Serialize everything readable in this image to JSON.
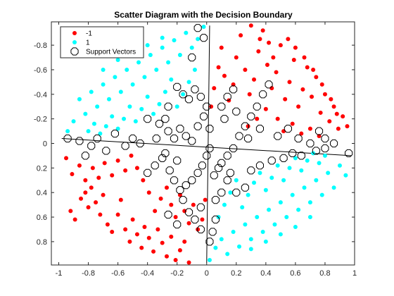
{
  "chart_data": {
    "type": "scatter",
    "title": "Scatter Diagram with the Decision Boundary",
    "xlabel": "",
    "ylabel": "",
    "xlim": [
      -1.05,
      1.0
    ],
    "ylim": [
      -0.99,
      0.99
    ],
    "y_reversed": true,
    "xticks": [
      -1,
      -0.8,
      -0.6,
      -0.4,
      -0.2,
      0,
      0.2,
      0.4,
      0.6,
      0.8,
      1
    ],
    "xtick_labels": [
      "-1",
      "-0.8",
      "-0.6",
      "-0.4",
      "-0.2",
      "0",
      "0.2",
      "0.4",
      "0.6",
      "0.8",
      "1"
    ],
    "yticks": [
      0.8,
      0.6,
      0.4,
      0.2,
      0,
      -0.2,
      -0.4,
      -0.6,
      -0.8
    ],
    "ytick_labels": [
      "0.8",
      "0.6",
      "0.4",
      "0.2",
      "0",
      "-0.2",
      "-0.4",
      "-0.6",
      "-0.8"
    ],
    "grid": false,
    "legend_position": "top-left",
    "legend": [
      "-1",
      "1",
      "Support Vectors"
    ],
    "colors": {
      "class_neg": "#ff0000",
      "class_pos": "#00ffff",
      "sv_ring": "#000000",
      "boundary": "#000000"
    },
    "series": [
      {
        "name": "-1",
        "color": "#ff0000",
        "points": [
          [
            -0.92,
            0.55
          ],
          [
            -0.89,
            0.62
          ],
          [
            -0.85,
            0.45
          ],
          [
            -0.82,
            0.4
          ],
          [
            -0.8,
            0.52
          ],
          [
            -0.78,
            0.36
          ],
          [
            -0.75,
            0.48
          ],
          [
            -0.72,
            0.58
          ],
          [
            -0.7,
            0.42
          ],
          [
            -0.67,
            0.66
          ],
          [
            -0.64,
            0.72
          ],
          [
            -0.6,
            0.58
          ],
          [
            -0.58,
            0.46
          ],
          [
            -0.55,
            0.7
          ],
          [
            -0.52,
            0.8
          ],
          [
            -0.5,
            0.62
          ],
          [
            -0.47,
            0.74
          ],
          [
            -0.44,
            0.85
          ],
          [
            -0.42,
            0.68
          ],
          [
            -0.39,
            0.77
          ],
          [
            -0.36,
            0.88
          ],
          [
            -0.33,
            0.7
          ],
          [
            -0.3,
            0.81
          ],
          [
            -0.27,
            0.92
          ],
          [
            -0.24,
            0.76
          ],
          [
            -0.21,
            0.95
          ],
          [
            -0.18,
            0.87
          ],
          [
            -0.15,
            0.8
          ],
          [
            -0.12,
            0.97
          ],
          [
            -0.95,
            0.12
          ],
          [
            -0.91,
            0.25
          ],
          [
            -0.86,
            0.18
          ],
          [
            -0.82,
            0.3
          ],
          [
            -0.77,
            0.2
          ],
          [
            -0.73,
            0.28
          ],
          [
            -0.69,
            0.16
          ],
          [
            -0.64,
            0.26
          ],
          [
            -0.6,
            0.14
          ],
          [
            -0.55,
            0.22
          ],
          [
            -0.51,
            0.1
          ],
          [
            -0.47,
            0.2
          ],
          [
            -0.43,
            0.3
          ],
          [
            -0.39,
            0.4
          ],
          [
            -0.35,
            0.55
          ],
          [
            -0.31,
            0.45
          ],
          [
            -0.27,
            0.36
          ],
          [
            -0.24,
            0.5
          ],
          [
            -0.21,
            0.6
          ],
          [
            -0.18,
            0.42
          ],
          [
            -0.15,
            0.55
          ],
          [
            -0.12,
            0.65
          ],
          [
            -0.09,
            0.5
          ],
          [
            -0.06,
            0.7
          ],
          [
            -0.03,
            0.62
          ],
          [
            -0.01,
            0.46
          ],
          [
            0.03,
            -0.3
          ],
          [
            0.05,
            -0.45
          ],
          [
            0.08,
            -0.62
          ],
          [
            0.1,
            -0.78
          ],
          [
            0.12,
            -0.55
          ],
          [
            0.15,
            -0.35
          ],
          [
            0.18,
            -0.48
          ],
          [
            0.2,
            -0.7
          ],
          [
            0.23,
            -0.88
          ],
          [
            0.26,
            -0.6
          ],
          [
            0.29,
            -0.4
          ],
          [
            0.32,
            -0.52
          ],
          [
            0.35,
            -0.75
          ],
          [
            0.38,
            -0.92
          ],
          [
            0.41,
            -0.64
          ],
          [
            0.44,
            -0.45
          ],
          [
            0.47,
            -0.58
          ],
          [
            0.5,
            -0.8
          ],
          [
            0.53,
            -0.36
          ],
          [
            0.56,
            -0.5
          ],
          [
            0.59,
            -0.68
          ],
          [
            0.62,
            -0.3
          ],
          [
            0.65,
            -0.44
          ],
          [
            0.68,
            -0.62
          ],
          [
            0.71,
            -0.38
          ],
          [
            0.74,
            -0.54
          ],
          [
            0.77,
            -0.25
          ],
          [
            0.8,
            -0.4
          ],
          [
            0.83,
            -0.18
          ],
          [
            0.86,
            -0.3
          ],
          [
            0.89,
            -0.12
          ],
          [
            0.92,
            -0.22
          ],
          [
            0.95,
            -0.14
          ],
          [
            0.48,
            -0.2
          ],
          [
            0.52,
            -0.1
          ],
          [
            0.58,
            -0.16
          ],
          [
            0.64,
            -0.08
          ],
          [
            0.7,
            -0.12
          ],
          [
            0.76,
            -0.06
          ],
          [
            0.4,
            -0.28
          ],
          [
            0.34,
            -0.2
          ],
          [
            0.28,
            -0.14
          ],
          [
            0.45,
            -0.7
          ],
          [
            0.55,
            -0.85
          ],
          [
            0.6,
            -0.78
          ],
          [
            0.66,
            -0.7
          ],
          [
            0.72,
            -0.6
          ],
          [
            0.78,
            -0.48
          ],
          [
            0.84,
            -0.36
          ],
          [
            0.88,
            -0.24
          ],
          [
            0.36,
            -0.85
          ],
          [
            0.3,
            -0.96
          ],
          [
            0.42,
            -0.82
          ]
        ]
      },
      {
        "name": "1",
        "color": "#00ffff",
        "points": [
          [
            0.02,
            0.95
          ],
          [
            0.06,
            0.85
          ],
          [
            0.1,
            0.78
          ],
          [
            0.14,
            0.9
          ],
          [
            0.18,
            0.72
          ],
          [
            0.22,
            0.84
          ],
          [
            0.26,
            0.66
          ],
          [
            0.3,
            0.78
          ],
          [
            0.34,
            0.6
          ],
          [
            0.38,
            0.72
          ],
          [
            0.42,
            0.54
          ],
          [
            0.46,
            0.66
          ],
          [
            0.5,
            0.48
          ],
          [
            0.54,
            0.6
          ],
          [
            0.58,
            0.42
          ],
          [
            0.62,
            0.54
          ],
          [
            0.66,
            0.36
          ],
          [
            0.7,
            0.48
          ],
          [
            0.74,
            0.3
          ],
          [
            0.78,
            0.42
          ],
          [
            0.82,
            0.24
          ],
          [
            0.86,
            0.36
          ],
          [
            0.9,
            0.18
          ],
          [
            0.94,
            0.26
          ],
          [
            0.08,
            0.6
          ],
          [
            0.12,
            0.5
          ],
          [
            0.16,
            0.4
          ],
          [
            0.2,
            0.3
          ],
          [
            0.24,
            0.52
          ],
          [
            0.28,
            0.42
          ],
          [
            0.32,
            0.32
          ],
          [
            0.36,
            0.24
          ],
          [
            0.4,
            0.38
          ],
          [
            0.44,
            0.28
          ],
          [
            0.48,
            0.18
          ],
          [
            0.52,
            0.3
          ],
          [
            0.56,
            0.2
          ],
          [
            0.6,
            0.12
          ],
          [
            0.64,
            0.22
          ],
          [
            0.68,
            0.14
          ],
          [
            0.72,
            0.08
          ],
          [
            0.76,
            0.16
          ],
          [
            0.8,
            0.1
          ],
          [
            0.3,
            0.86
          ],
          [
            0.4,
            0.8
          ],
          [
            0.5,
            0.74
          ],
          [
            0.6,
            0.68
          ],
          [
            0.7,
            0.6
          ],
          [
            -0.02,
            -0.95
          ],
          [
            -0.06,
            -0.85
          ],
          [
            -0.1,
            -0.78
          ],
          [
            -0.14,
            -0.9
          ],
          [
            -0.18,
            -0.72
          ],
          [
            -0.22,
            -0.84
          ],
          [
            -0.26,
            -0.66
          ],
          [
            -0.3,
            -0.78
          ],
          [
            -0.34,
            -0.6
          ],
          [
            -0.38,
            -0.72
          ],
          [
            -0.42,
            -0.54
          ],
          [
            -0.46,
            -0.66
          ],
          [
            -0.5,
            -0.48
          ],
          [
            -0.54,
            -0.6
          ],
          [
            -0.58,
            -0.42
          ],
          [
            -0.62,
            -0.54
          ],
          [
            -0.66,
            -0.36
          ],
          [
            -0.7,
            -0.48
          ],
          [
            -0.74,
            -0.3
          ],
          [
            -0.78,
            -0.42
          ],
          [
            -0.82,
            -0.24
          ],
          [
            -0.86,
            -0.36
          ],
          [
            -0.9,
            -0.18
          ],
          [
            -0.94,
            -0.1
          ],
          [
            -0.08,
            -0.6
          ],
          [
            -0.12,
            -0.5
          ],
          [
            -0.16,
            -0.4
          ],
          [
            -0.2,
            -0.3
          ],
          [
            -0.24,
            -0.52
          ],
          [
            -0.28,
            -0.42
          ],
          [
            -0.32,
            -0.32
          ],
          [
            -0.36,
            -0.24
          ],
          [
            -0.4,
            -0.38
          ],
          [
            -0.44,
            -0.28
          ],
          [
            -0.48,
            -0.18
          ],
          [
            -0.52,
            -0.3
          ],
          [
            -0.56,
            -0.2
          ],
          [
            -0.6,
            -0.12
          ],
          [
            -0.64,
            -0.22
          ],
          [
            -0.68,
            -0.14
          ],
          [
            -0.72,
            -0.08
          ],
          [
            -0.76,
            -0.16
          ],
          [
            -0.8,
            -0.1
          ],
          [
            -0.3,
            -0.86
          ],
          [
            -0.4,
            -0.8
          ],
          [
            -0.5,
            -0.74
          ],
          [
            -0.6,
            -0.68
          ],
          [
            -0.7,
            -0.6
          ],
          [
            -0.55,
            -0.88
          ],
          [
            -0.65,
            -0.8
          ],
          [
            -0.45,
            -0.92
          ]
        ]
      }
    ],
    "support_vectors": [
      [
        -0.82,
        0.1
      ],
      [
        -0.78,
        0.02
      ],
      [
        -0.68,
        0.06
      ],
      [
        -0.55,
        0.02
      ],
      [
        -0.45,
        0.0
      ],
      [
        -0.4,
        0.24
      ],
      [
        -0.35,
        0.18
      ],
      [
        -0.3,
        0.12
      ],
      [
        -0.25,
        0.22
      ],
      [
        -0.22,
        0.3
      ],
      [
        -0.18,
        0.38
      ],
      [
        -0.14,
        0.34
      ],
      [
        -0.1,
        0.3
      ],
      [
        -0.06,
        0.24
      ],
      [
        -0.03,
        0.18
      ],
      [
        0.0,
        0.1
      ],
      [
        0.02,
        0.04
      ],
      [
        -0.28,
        0.08
      ],
      [
        -0.2,
        0.14
      ],
      [
        -0.16,
        0.46
      ],
      [
        -0.12,
        0.56
      ],
      [
        -0.08,
        0.62
      ],
      [
        -0.04,
        0.7
      ],
      [
        -0.2,
        0.66
      ],
      [
        -0.26,
        0.58
      ],
      [
        0.05,
        0.26
      ],
      [
        0.08,
        0.2
      ],
      [
        0.1,
        0.16
      ],
      [
        0.14,
        0.1
      ],
      [
        0.18,
        0.04
      ],
      [
        0.22,
        -0.06
      ],
      [
        0.26,
        -0.14
      ],
      [
        0.3,
        -0.22
      ],
      [
        0.34,
        -0.3
      ],
      [
        0.38,
        -0.4
      ],
      [
        0.42,
        -0.48
      ],
      [
        0.28,
        -0.04
      ],
      [
        0.36,
        -0.12
      ],
      [
        0.48,
        -0.06
      ],
      [
        0.55,
        -0.12
      ],
      [
        0.62,
        -0.04
      ],
      [
        0.7,
        0.0
      ],
      [
        0.76,
        -0.1
      ],
      [
        0.8,
        -0.04
      ],
      [
        0.86,
        0.0
      ],
      [
        0.1,
        -0.3
      ],
      [
        0.14,
        -0.38
      ],
      [
        0.18,
        -0.44
      ],
      [
        0.2,
        -0.26
      ],
      [
        0.12,
        -0.2
      ],
      [
        0.06,
        0.62
      ],
      [
        0.04,
        0.72
      ],
      [
        0.02,
        0.8
      ],
      [
        -0.04,
        0.52
      ],
      [
        0.14,
        0.3
      ],
      [
        0.2,
        0.4
      ],
      [
        0.26,
        0.36
      ],
      [
        0.3,
        0.22
      ],
      [
        0.36,
        0.18
      ],
      [
        0.44,
        0.14
      ],
      [
        0.52,
        0.12
      ],
      [
        0.58,
        0.08
      ],
      [
        0.64,
        0.1
      ],
      [
        0.74,
        0.06
      ],
      [
        0.96,
        0.08
      ],
      [
        0.8,
        0.04
      ],
      [
        -0.94,
        -0.04
      ],
      [
        -0.86,
        -0.02
      ],
      [
        -0.74,
        -0.04
      ],
      [
        -0.62,
        -0.08
      ],
      [
        -0.5,
        -0.04
      ],
      [
        -0.4,
        -0.2
      ],
      [
        -0.32,
        -0.16
      ],
      [
        -0.26,
        -0.1
      ],
      [
        -0.22,
        -0.04
      ],
      [
        -0.18,
        -0.12
      ],
      [
        -0.14,
        -0.06
      ],
      [
        -0.1,
        -0.02
      ],
      [
        -0.06,
        -0.14
      ],
      [
        -0.02,
        -0.22
      ],
      [
        0.0,
        -0.3
      ],
      [
        -0.04,
        -0.38
      ],
      [
        -0.08,
        -0.44
      ],
      [
        -0.12,
        -0.36
      ],
      [
        -0.16,
        -0.4
      ],
      [
        -0.2,
        -0.46
      ],
      [
        -0.26,
        -0.3
      ],
      [
        -0.28,
        -0.2
      ],
      [
        -0.1,
        -0.7
      ],
      [
        -0.02,
        -0.86
      ],
      [
        -0.06,
        -0.94
      ],
      [
        0.02,
        -0.12
      ],
      [
        -0.34,
        -0.04
      ],
      [
        0.06,
        0.46
      ],
      [
        0.1,
        0.4
      ],
      [
        0.16,
        0.24
      ]
    ],
    "boundary_lines": [
      [
        [
          -0.98,
          -0.04
        ],
        [
          0.98,
          0.1
        ]
      ],
      [
        [
          0.0,
          0.97
        ],
        [
          0.02,
          -0.96
        ]
      ]
    ]
  }
}
